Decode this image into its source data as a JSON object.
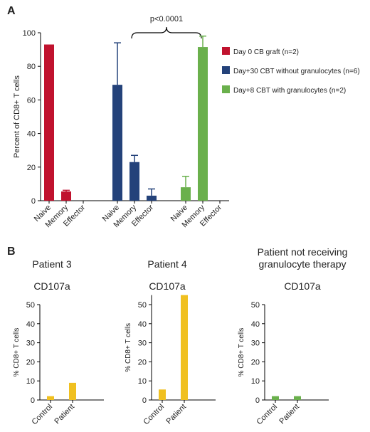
{
  "panels": [
    "A",
    "B"
  ],
  "chart_data": [
    {
      "type": "bar",
      "ylabel": "Percent of CD8+ T cells",
      "annotation": "p<0.0001",
      "categories": [
        "Naive",
        "Memory",
        "Effector"
      ],
      "series": [
        {
          "name": "Day 0 CB graft (n=2)",
          "color": "#c0122e",
          "values": [
            93,
            5.5,
            0
          ],
          "errors": [
            null,
            0.7,
            null
          ]
        },
        {
          "name": "Day+30 CBT without granulocytes (n=6)",
          "color": "#24427a",
          "values": [
            69,
            23,
            3
          ],
          "errors": [
            25,
            4,
            4
          ]
        },
        {
          "name": "Day+8 CBT with granulocytes (n=2)",
          "color": "#6ab04c",
          "values": [
            8,
            91.5,
            0
          ],
          "errors": [
            6.5,
            6.5,
            null
          ]
        }
      ],
      "ylim": [
        0,
        100
      ],
      "yticks": [
        0,
        20,
        40,
        60,
        80,
        100
      ],
      "legend": "right"
    },
    {
      "type": "bar",
      "title": "Patient 3",
      "subtitle": "CD107a",
      "ylabel": "% CD8+ T cells",
      "categories": [
        "Control",
        "Patient"
      ],
      "values": [
        2,
        9
      ],
      "color": "#f0c020",
      "ylim": [
        0,
        50
      ],
      "yticks": [
        0,
        10,
        20,
        30,
        40,
        50
      ]
    },
    {
      "type": "bar",
      "title": "Patient 4",
      "subtitle": "CD107a",
      "ylabel": "% CD8+ T cells",
      "categories": [
        "Control",
        "Patient"
      ],
      "values": [
        5.5,
        55
      ],
      "color": "#f0c020",
      "ylim": [
        0,
        55
      ],
      "yticks": [
        0,
        10,
        20,
        30,
        40,
        50
      ]
    },
    {
      "type": "bar",
      "title": "Patient not receiving granulocyte therapy",
      "subtitle": "CD107a",
      "ylabel": "% CD8+ T cells",
      "categories": [
        "Control",
        "Patient"
      ],
      "values": [
        2,
        2
      ],
      "color": "#6ab04c",
      "ylim": [
        0,
        50
      ],
      "yticks": [
        0,
        10,
        20,
        30,
        40,
        50
      ]
    }
  ]
}
